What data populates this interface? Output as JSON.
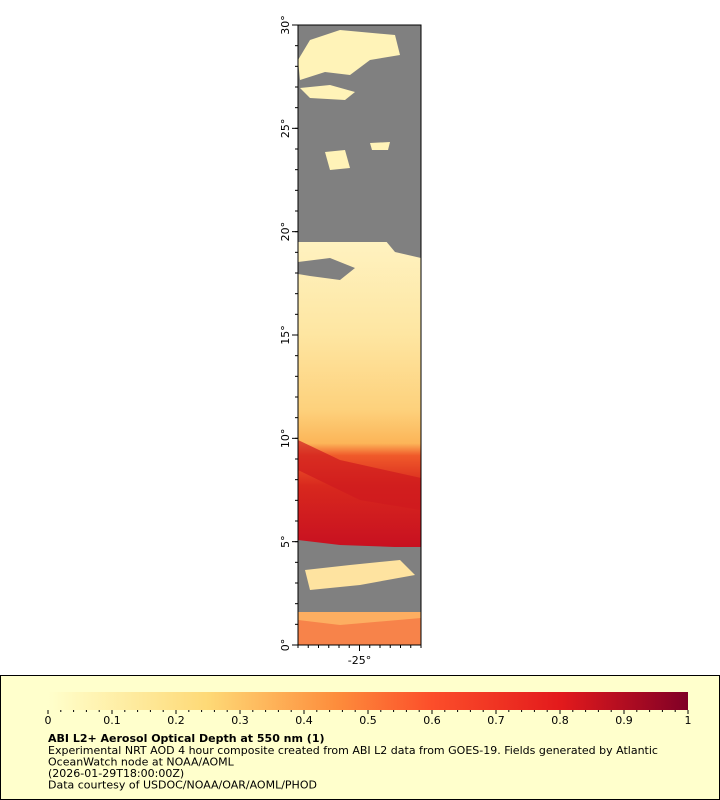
{
  "map": {
    "lat_range": [
      0,
      30
    ],
    "lon_range": [
      -26.5,
      -23.5
    ],
    "lat_ticks": [
      {
        "value": 0,
        "label": "0°"
      },
      {
        "value": 5,
        "label": "5°"
      },
      {
        "value": 10,
        "label": "10°"
      },
      {
        "value": 15,
        "label": "15°"
      },
      {
        "value": 20,
        "label": "20°"
      },
      {
        "value": 25,
        "label": "25°"
      },
      {
        "value": 30,
        "label": "30°"
      }
    ],
    "lon_ticks": [
      {
        "value": -25,
        "label": "-25°"
      }
    ]
  },
  "legend": {
    "range": [
      0,
      1
    ],
    "ticks": [
      0,
      0.1,
      0.2,
      0.3,
      0.4,
      0.5,
      0.6,
      0.7,
      0.8,
      0.9,
      1
    ],
    "title": "ABI L2+ Aerosol Optical Depth at 550 nm (1)",
    "lines": [
      "Experimental NRT AOD 4 hour composite created from ABI L2 data from GOES-19. Fields generated by Atlantic",
      "OceanWatch node at NOAA/AOML",
      "(2026-01-29T18:00:00Z)",
      "Data courtesy of USDOC/NOAA/OAR/AOML/PHOD"
    ]
  }
}
